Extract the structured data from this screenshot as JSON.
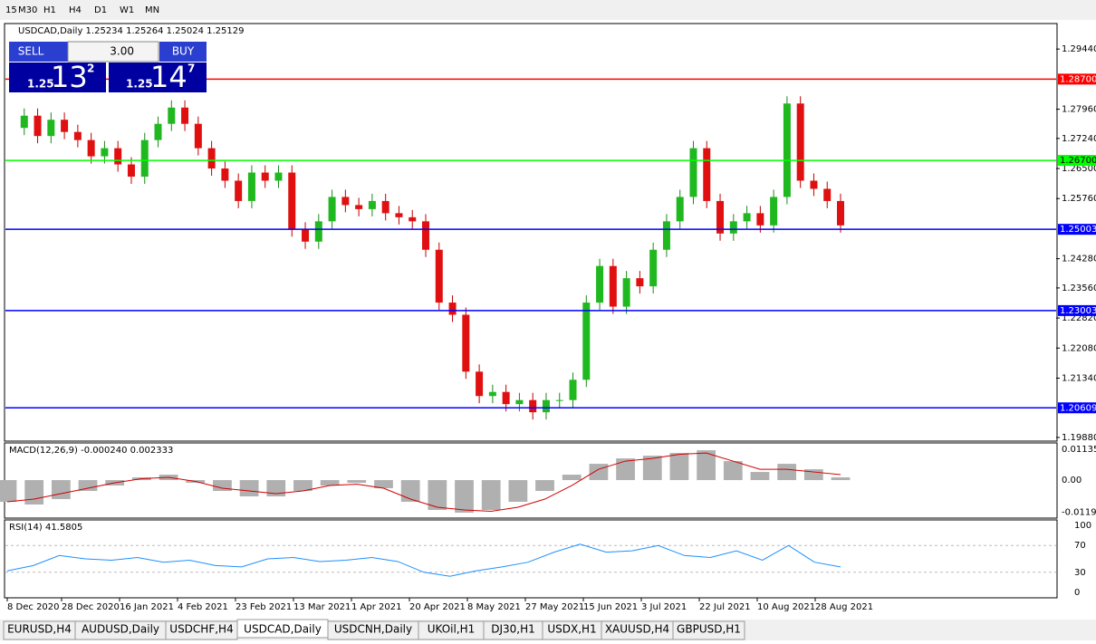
{
  "toolbar": {
    "periods": [
      "15",
      "M30",
      "H1",
      "H4",
      "D1",
      "W1",
      "MN"
    ]
  },
  "header": {
    "title": "USDCAD,Daily  1.25234 1.25264 1.25024 1.25129"
  },
  "trade_panel": {
    "sell": "SELL",
    "buy": "BUY",
    "lot": "3.00",
    "sell_prefix": "1.25",
    "sell_big": "13",
    "sell_sup": "2",
    "buy_prefix": "1.25",
    "buy_big": "14",
    "buy_sup": "7"
  },
  "chart_data": {
    "type": "candlestick",
    "ylim": [
      1.1979,
      1.30068
    ],
    "yticks": [
      {
        "value": 1.2944,
        "label": "1.29440"
      },
      {
        "value": 1.2796,
        "label": "1.27960"
      },
      {
        "value": 1.2724,
        "label": "1.27240"
      },
      {
        "value": 1.265,
        "label": "1.26500"
      },
      {
        "value": 1.2576,
        "label": "1.25760"
      },
      {
        "value": 1.2428,
        "label": "1.24280"
      },
      {
        "value": 1.2356,
        "label": "1.23560"
      },
      {
        "value": 1.2282,
        "label": "1.22820"
      },
      {
        "value": 1.2208,
        "label": "1.22080"
      },
      {
        "value": 1.2134,
        "label": "1.21340"
      },
      {
        "value": 1.1988,
        "label": "1.19880"
      }
    ],
    "levels": [
      {
        "value": 1.287,
        "label": "1.28700",
        "color": "#ff0000"
      },
      {
        "value": 1.267,
        "label": "1.26700",
        "color": "#00ff00"
      },
      {
        "value": 1.25003,
        "label": "1.25003",
        "color": "#0000ff"
      },
      {
        "value": 1.23003,
        "label": "1.23003",
        "color": "#0000ff"
      },
      {
        "value": 1.20609,
        "label": "1.20609",
        "color": "#0000ff"
      }
    ],
    "closes": [
      1.275,
      1.278,
      1.273,
      1.277,
      1.274,
      1.272,
      1.268,
      1.27,
      1.266,
      1.263,
      1.272,
      1.276,
      1.28,
      1.276,
      1.27,
      1.265,
      1.262,
      1.257,
      1.264,
      1.262,
      1.264,
      1.25,
      1.247,
      1.252,
      1.258,
      1.256,
      1.255,
      1.257,
      1.254,
      1.253,
      1.252,
      1.245,
      1.232,
      1.229,
      1.215,
      1.209,
      1.21,
      1.207,
      1.208,
      1.205,
      1.208,
      1.208,
      1.213,
      1.232,
      1.241,
      1.231,
      1.238,
      1.236,
      1.245,
      1.252,
      1.258,
      1.27,
      1.257,
      1.249,
      1.252,
      1.254,
      1.251,
      1.258,
      1.281,
      1.262,
      1.26,
      1.257,
      1.251
    ],
    "dates": [
      "8 Dec 2020",
      "28 Dec 2020",
      "16 Jan 2021",
      "4 Feb 2021",
      "23 Feb 2021",
      "13 Mar 2021",
      "1 Apr 2021",
      "20 Apr 2021",
      "8 May 2021",
      "27 May 2021",
      "15 Jun 2021",
      "3 Jul 2021",
      "22 Jul 2021",
      "10 Aug 2021",
      "28 Aug 2021"
    ]
  },
  "macd": {
    "title": "MACD(12,26,9) -0.000240 0.002333",
    "ylim": [
      -0.014,
      0.0137
    ],
    "yticks": [
      {
        "value": 0.01135,
        "label": "0.01135"
      },
      {
        "value": 0,
        "label": "0.00"
      },
      {
        "value": -0.0119,
        "label": "-0.01190"
      }
    ],
    "histogram": [
      -0.008,
      -0.009,
      -0.007,
      -0.004,
      -0.002,
      0.001,
      0.002,
      -0.001,
      -0.004,
      -0.006,
      -0.006,
      -0.004,
      -0.002,
      -0.001,
      -0.003,
      -0.008,
      -0.011,
      -0.012,
      -0.011,
      -0.008,
      -0.004,
      0.002,
      0.006,
      0.008,
      0.009,
      0.01,
      0.011,
      0.007,
      0.003,
      0.006,
      0.004,
      0.001
    ],
    "signal": [
      -0.008,
      -0.007,
      -0.005,
      -0.003,
      -0.001,
      0.0005,
      0.001,
      -0.0005,
      -0.003,
      -0.004,
      -0.005,
      -0.004,
      -0.002,
      -0.0015,
      -0.003,
      -0.007,
      -0.01,
      -0.011,
      -0.0115,
      -0.01,
      -0.007,
      -0.002,
      0.004,
      0.007,
      0.008,
      0.0095,
      0.01,
      0.007,
      0.004,
      0.004,
      0.003,
      0.002
    ]
  },
  "rsi": {
    "title": "RSI(14) 41.5805",
    "ylim": [
      -8.2,
      108.2
    ],
    "yticks": [
      100,
      70,
      30,
      0
    ],
    "values": [
      32,
      40,
      55,
      50,
      48,
      52,
      45,
      48,
      40,
      38,
      50,
      52,
      46,
      48,
      52,
      46,
      30,
      24,
      32,
      38,
      45,
      60,
      72,
      60,
      62,
      70,
      55,
      52,
      62,
      48,
      70,
      45,
      38
    ]
  },
  "tabs": [
    "EURUSD,H4",
    "AUDUSD,Daily",
    "USDCHF,H4",
    "USDCAD,Daily",
    "USDCNH,Daily",
    "UKOil,H1",
    "DJ30,H1",
    "USDX,H1",
    "XAUUSD,H4",
    "GBPUSD,H1"
  ]
}
